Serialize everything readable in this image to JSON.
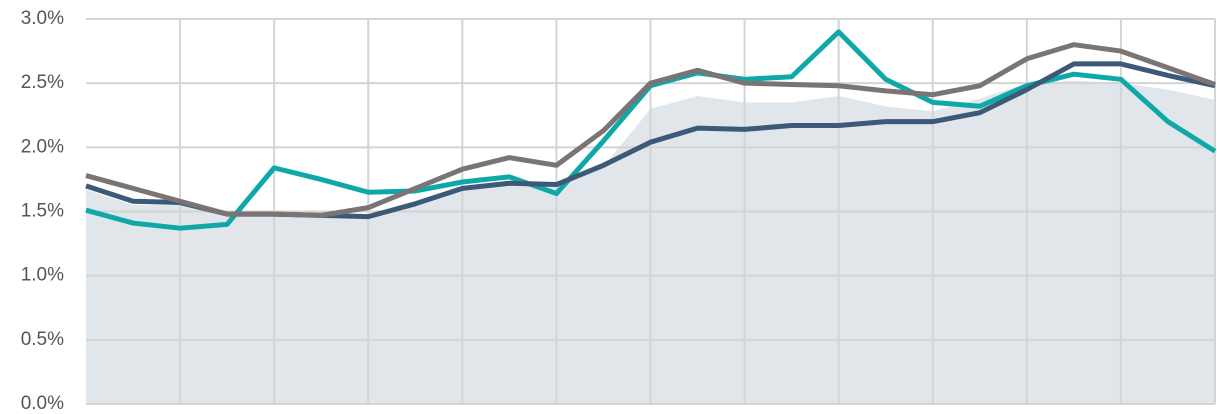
{
  "chart_data": {
    "type": "line",
    "categories": [
      null,
      null,
      null,
      null,
      null,
      null,
      null,
      null,
      null,
      null,
      null,
      null,
      null,
      null,
      null,
      null,
      null,
      null,
      null,
      null,
      null,
      null,
      null,
      null,
      null
    ],
    "series": [
      {
        "color": "#e1e6ea",
        "area": true,
        "values": [
          1.67,
          1.55,
          1.55,
          1.47,
          1.47,
          1.46,
          1.45,
          1.55,
          1.67,
          1.72,
          1.7,
          1.85,
          2.3,
          2.4,
          2.35,
          2.35,
          2.4,
          2.32,
          2.28,
          2.38,
          2.5,
          2.52,
          2.5,
          2.45,
          2.37
        ]
      },
      {
        "color": "#0fa8a8",
        "values": [
          1.51,
          1.41,
          1.37,
          1.4,
          1.84,
          1.75,
          1.65,
          1.66,
          1.73,
          1.77,
          1.64,
          2.05,
          2.48,
          2.58,
          2.53,
          2.55,
          2.9,
          2.53,
          2.35,
          2.32,
          2.48,
          2.57,
          2.53,
          2.2,
          1.97
        ]
      },
      {
        "color": "#3c5a78",
        "values": [
          1.7,
          1.58,
          1.57,
          1.48,
          1.48,
          1.47,
          1.46,
          1.56,
          1.68,
          1.72,
          1.71,
          1.86,
          2.04,
          2.15,
          2.14,
          2.17,
          2.17,
          2.2,
          2.2,
          2.27,
          2.45,
          2.65,
          2.65,
          2.56,
          2.48
        ]
      },
      {
        "color": "#7a7474",
        "values": [
          1.78,
          1.68,
          1.58,
          1.48,
          1.48,
          1.47,
          1.53,
          1.68,
          1.83,
          1.92,
          1.86,
          2.13,
          2.5,
          2.6,
          2.5,
          2.49,
          2.48,
          2.44,
          2.41,
          2.48,
          2.69,
          2.8,
          2.75,
          2.62,
          2.49
        ]
      }
    ],
    "ylim": [
      0,
      3
    ],
    "yticks": [
      {
        "value": 0,
        "label": "0.0%"
      },
      {
        "value": 0.5,
        "label": "0.5%"
      },
      {
        "value": 1,
        "label": "1.0%"
      },
      {
        "value": 1.5,
        "label": "1.5%"
      },
      {
        "value": 2,
        "label": "2.0%"
      },
      {
        "value": 2.5,
        "label": "2.5%"
      },
      {
        "value": 3,
        "label": "3.0%"
      }
    ],
    "grid": true
  }
}
